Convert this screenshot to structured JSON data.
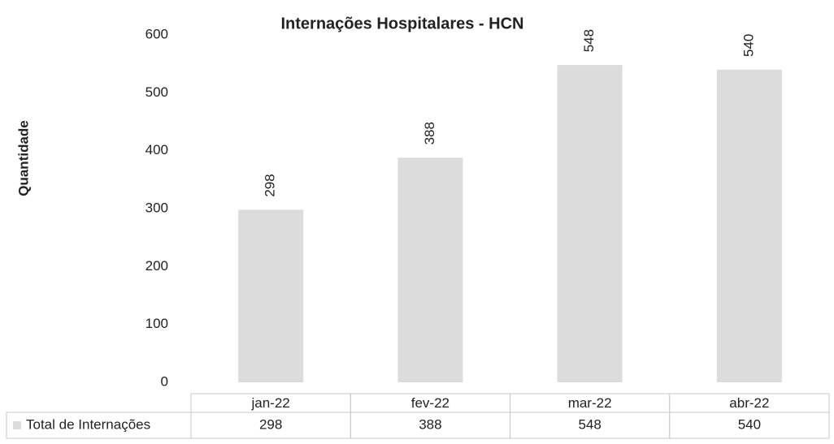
{
  "chart_data": {
    "type": "bar",
    "title": "Internações Hospitalares - HCN",
    "y_label": "Quantidade",
    "categories": [
      "jan-22",
      "fev-22",
      "mar-22",
      "abr-22"
    ],
    "series": [
      {
        "name": "Total de Internações",
        "color": "#dcdcdc",
        "values": [
          298,
          388,
          548,
          540
        ]
      }
    ],
    "ylim": [
      0,
      600
    ],
    "yticks": [
      0,
      100,
      200,
      300,
      400,
      500,
      600
    ],
    "grid": false,
    "data_labels": true,
    "data_table": true
  }
}
